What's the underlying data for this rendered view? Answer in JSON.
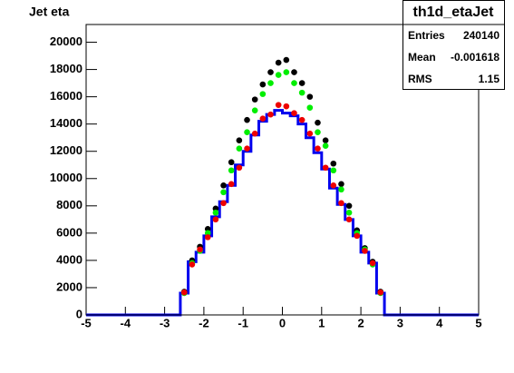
{
  "chart_data": {
    "type": "histogram",
    "title": "Jet eta",
    "bins": [
      -5,
      -4.8,
      -4.6,
      -4.4,
      -4.2,
      -4,
      -3.8,
      -3.6,
      -3.4,
      -3.2,
      -3,
      -2.8,
      -2.6,
      -2.4,
      -2.2,
      -2,
      -1.8,
      -1.6,
      -1.4,
      -1.2,
      -1,
      -0.8,
      -0.6,
      -0.4,
      -0.2,
      0,
      0.2,
      0.4,
      0.6,
      0.8,
      1,
      1.2,
      1.4,
      1.6,
      1.8,
      2,
      2.2,
      2.4,
      2.6,
      2.8,
      3,
      3.2,
      3.4,
      3.6,
      3.8,
      4,
      4.2,
      4.4,
      4.6,
      4.8,
      5
    ],
    "series": [
      {
        "color": "#0000ee",
        "style": "step",
        "values": [
          0,
          0,
          0,
          0,
          0,
          0,
          0,
          0,
          0,
          0,
          0,
          0,
          1600,
          3900,
          4600,
          5800,
          7200,
          8300,
          9500,
          11000,
          12000,
          13200,
          14200,
          14700,
          15000,
          14800,
          14600,
          14000,
          13000,
          11900,
          10700,
          9300,
          8100,
          7000,
          5800,
          4600,
          3800,
          1600,
          0,
          0,
          0,
          0,
          0,
          0,
          0,
          0,
          0,
          0,
          0,
          0
        ]
      },
      {
        "color": "#000000",
        "style": "marker",
        "values": [
          null,
          null,
          null,
          null,
          null,
          null,
          null,
          null,
          null,
          null,
          null,
          null,
          1700,
          4000,
          5000,
          6300,
          7800,
          9500,
          11200,
          12800,
          14300,
          15800,
          16900,
          17800,
          18500,
          18700,
          17800,
          17000,
          16000,
          14100,
          12800,
          11100,
          9600,
          8000,
          6200,
          4900,
          3900,
          1700,
          null,
          null,
          null,
          null,
          null,
          null,
          null,
          null,
          null,
          null,
          null,
          null
        ]
      },
      {
        "color": "#00ee00",
        "style": "marker",
        "values": [
          null,
          null,
          null,
          null,
          null,
          null,
          null,
          null,
          null,
          null,
          null,
          null,
          1600,
          3800,
          4700,
          6000,
          7500,
          9000,
          10600,
          12200,
          13400,
          15000,
          16200,
          17000,
          17600,
          17800,
          17000,
          16300,
          15200,
          13400,
          12400,
          10600,
          9200,
          7500,
          6000,
          4800,
          3700,
          1600,
          null,
          null,
          null,
          null,
          null,
          null,
          null,
          null,
          null,
          null,
          null,
          null
        ]
      },
      {
        "color": "#ee0000",
        "style": "marker",
        "values": [
          null,
          null,
          null,
          null,
          null,
          null,
          null,
          null,
          null,
          null,
          null,
          null,
          1650,
          3700,
          4800,
          5700,
          7000,
          8200,
          9600,
          10800,
          12200,
          13300,
          14400,
          14700,
          15400,
          15300,
          14800,
          14300,
          13300,
          12200,
          10800,
          9500,
          8200,
          7000,
          5800,
          4700,
          3800,
          1650,
          null,
          null,
          null,
          null,
          null,
          null,
          null,
          null,
          null,
          null,
          null,
          null
        ]
      }
    ],
    "xlim": [
      -5,
      5
    ],
    "xticks": [
      -5,
      -4,
      -3,
      -2,
      -1,
      0,
      1,
      2,
      3,
      4,
      5
    ],
    "ylim": [
      0,
      21300
    ],
    "yticks": [
      0,
      2000,
      4000,
      6000,
      8000,
      10000,
      12000,
      14000,
      16000,
      18000,
      20000
    ]
  },
  "stats": {
    "title": "th1d_etaJet",
    "rows": [
      [
        "Entries",
        "240140"
      ],
      [
        "Mean",
        "-0.001618"
      ],
      [
        "RMS",
        "1.15"
      ]
    ]
  }
}
